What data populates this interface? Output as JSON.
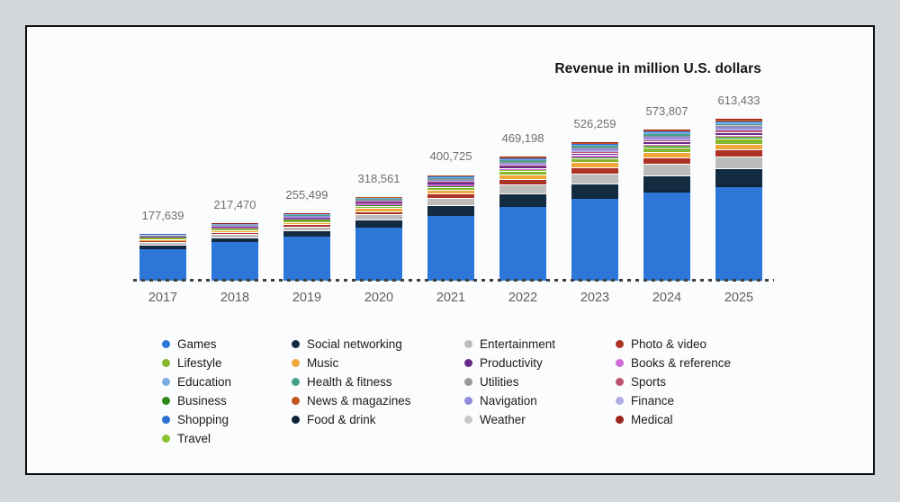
{
  "title": "Revenue in million U.S. dollars",
  "chart_data": {
    "type": "bar",
    "stacked": true,
    "unit": "million U.S. dollars",
    "title": "Revenue in million U.S. dollars",
    "legend_position": "bottom",
    "x_axis_style": "dashed baseline, no y-axis shown",
    "categories": [
      "2017",
      "2018",
      "2019",
      "2020",
      "2021",
      "2022",
      "2023",
      "2024",
      "2025"
    ],
    "totals": [
      177639,
      217470,
      255499,
      318561,
      400725,
      469198,
      526259,
      573807,
      613433
    ],
    "total_labels": [
      "177,639",
      "217,470",
      "255,499",
      "318,561",
      "400,725",
      "469,198",
      "526,259",
      "573,807",
      "613,433"
    ],
    "series": [
      {
        "name": "Games",
        "color": "#2d77d9",
        "values": [
          120739,
          145070,
          166449,
          201911,
          243775,
          280998,
          310259,
          335557,
          355933
        ]
      },
      {
        "name": "Lifestyle",
        "color": "#85b62c",
        "values": [
          4000,
          5000,
          6500,
          8500,
          11000,
          13000,
          15000,
          16500,
          18000
        ]
      },
      {
        "name": "Education",
        "color": "#7dace8",
        "values": [
          1100,
          1400,
          1800,
          2400,
          3200,
          3900,
          4500,
          5000,
          5400
        ]
      },
      {
        "name": "Business",
        "color": "#2f891b",
        "values": [
          600,
          800,
          1050,
          1400,
          1900,
          2300,
          2700,
          3000,
          3300
        ]
      },
      {
        "name": "Shopping",
        "color": "#2b6fd3",
        "values": [
          1000,
          1300,
          1700,
          2300,
          3100,
          3700,
          4300,
          4800,
          5200
        ]
      },
      {
        "name": "Travel",
        "color": "#8ac331",
        "values": [
          550,
          750,
          950,
          1300,
          1750,
          2100,
          2450,
          2750,
          3000
        ]
      },
      {
        "name": "Social networking",
        "color": "#132b41",
        "values": [
          15000,
          19000,
          23000,
          29000,
          39000,
          47000,
          54000,
          60000,
          65000
        ]
      },
      {
        "name": "Music",
        "color": "#f2a73b",
        "values": [
          7000,
          8500,
          10000,
          12500,
          15000,
          17500,
          19500,
          21000,
          22500
        ]
      },
      {
        "name": "Health & fitness",
        "color": "#47a18a",
        "values": [
          1300,
          1700,
          2100,
          2800,
          3800,
          4500,
          5200,
          5700,
          6200
        ]
      },
      {
        "name": "News & magazines",
        "color": "#c2551f",
        "values": [
          650,
          900,
          1150,
          1550,
          2100,
          2600,
          3000,
          3400,
          3700
        ]
      },
      {
        "name": "Food & drink",
        "color": "#0f2336",
        "values": [
          800,
          1100,
          1400,
          1900,
          2600,
          3100,
          3600,
          4000,
          4400
        ]
      },
      {
        "name": "Entertainment",
        "color": "#bcbcbc",
        "values": [
          9000,
          11500,
          14000,
          19000,
          27000,
          33000,
          38000,
          42000,
          45000
        ]
      },
      {
        "name": "Productivity",
        "color": "#682a88",
        "values": [
          2000,
          2600,
          3200,
          4200,
          5500,
          6600,
          7600,
          8400,
          9000
        ]
      },
      {
        "name": "Utilities",
        "color": "#999999",
        "values": [
          700,
          1000,
          1300,
          1700,
          2400,
          2900,
          3400,
          3800,
          4100
        ]
      },
      {
        "name": "Navigation",
        "color": "#8f8ada",
        "values": [
          1500,
          1900,
          2400,
          3100,
          4200,
          5000,
          5700,
          6300,
          6800
        ]
      },
      {
        "name": "Weather",
        "color": "#c7c7c7",
        "values": [
          500,
          650,
          800,
          1000,
          1300,
          1600,
          1850,
          2100,
          2300
        ]
      },
      {
        "name": "Photo & video",
        "color": "#ac3226",
        "values": [
          5500,
          7000,
          8500,
          12000,
          17000,
          20000,
          23000,
          25000,
          27000
        ]
      },
      {
        "name": "Books & reference",
        "color": "#d26bd8",
        "values": [
          2200,
          2800,
          3500,
          4500,
          6000,
          7200,
          8200,
          9000,
          9800
        ]
      },
      {
        "name": "Sports",
        "color": "#bd5170",
        "values": [
          1200,
          1500,
          1900,
          2500,
          3400,
          4100,
          4700,
          5200,
          5600
        ]
      },
      {
        "name": "Finance",
        "color": "#b1abe4",
        "values": [
          1400,
          1800,
          2300,
          3000,
          4000,
          4800,
          5500,
          6100,
          6600
        ]
      },
      {
        "name": "Medical",
        "color": "#9e241e",
        "values": [
          900,
          1200,
          1500,
          2000,
          2700,
          3300,
          3800,
          4200,
          4600
        ]
      }
    ],
    "stack_order": [
      "Games",
      "Food & drink",
      "Social networking",
      "Entertainment",
      "Photo & video",
      "Music",
      "Lifestyle",
      "Business",
      "Travel",
      "Books & reference",
      "Productivity",
      "Sports",
      "Finance",
      "Navigation",
      "Utilities",
      "Weather",
      "Health & fitness",
      "Education",
      "Shopping",
      "News & magazines",
      "Medical"
    ]
  },
  "legend": {
    "columns": [
      [
        "Games",
        "Lifestyle",
        "Education",
        "Business",
        "Shopping",
        "Travel"
      ],
      [
        "Social networking",
        "Music",
        "Health & fitness",
        "News & magazines",
        "Food & drink"
      ],
      [
        "Entertainment",
        "Productivity",
        "Utilities",
        "Navigation",
        "Weather"
      ],
      [
        "Photo & video",
        "Books & reference",
        "Sports",
        "Finance",
        "Medical"
      ]
    ]
  }
}
